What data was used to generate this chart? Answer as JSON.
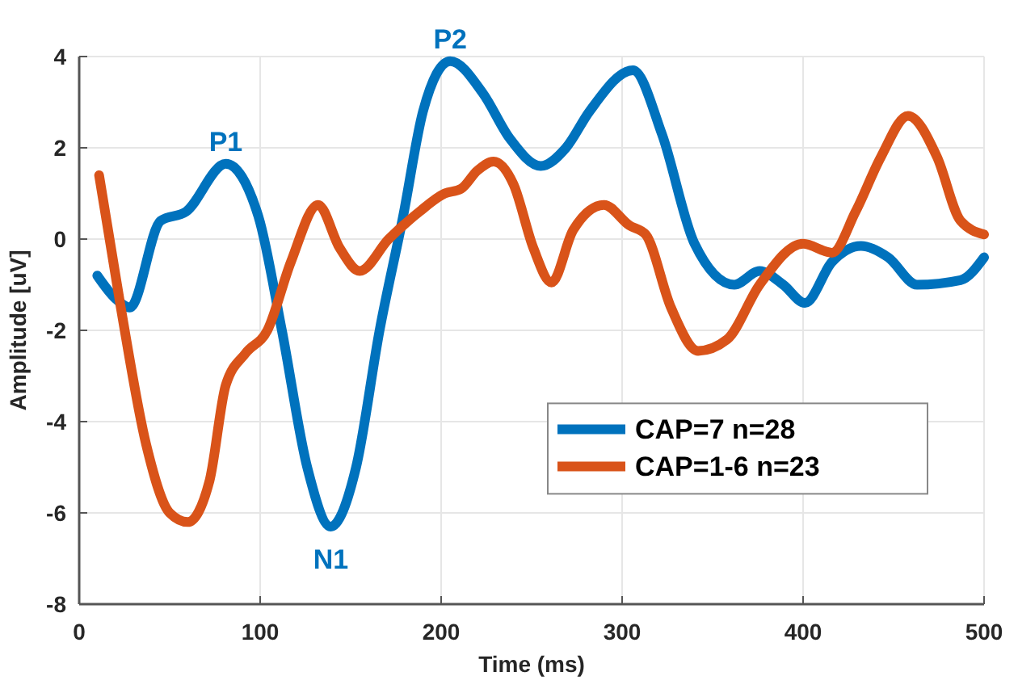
{
  "chart_data": {
    "type": "line",
    "xlabel": "Time (ms)",
    "ylabel": "Amplitude [uV]",
    "xlim": [
      0,
      500
    ],
    "xticks": [
      0,
      100,
      200,
      300,
      400,
      500
    ],
    "ylim": [
      -8,
      4
    ],
    "yticks": [
      -8,
      -6,
      -4,
      -2,
      0,
      2,
      4
    ],
    "grid": true,
    "legend": "bottom right",
    "line_style": "solid",
    "series": [
      {
        "name": "CAP=7 n=28",
        "color": "#0072bd",
        "x": [
          10,
          20,
          28,
          45,
          59,
          81,
          99,
          112,
          126,
          139,
          153,
          166,
          179,
          190,
          205,
          223,
          238,
          255,
          269,
          282,
          306,
          322,
          340,
          362,
          376,
          389,
          401,
          416,
          432,
          447,
          463,
          487,
          500
        ],
        "values": [
          -0.8,
          -1.3,
          -1.5,
          0.4,
          0.6,
          1.65,
          0.5,
          -2,
          -5,
          -6.3,
          -5,
          -2,
          0.5,
          2.8,
          3.9,
          3.2,
          2.2,
          1.6,
          2,
          2.8,
          3.7,
          2.3,
          -0.1,
          -1,
          -0.7,
          -1,
          -1.4,
          -0.5,
          -0.15,
          -0.4,
          -1,
          -0.9,
          -0.4
        ]
      },
      {
        "name": "CAP=1-6 n=23",
        "color": "#d95319",
        "x": [
          11,
          23,
          37,
          50,
          60,
          72,
          81,
          92,
          104,
          117,
          132,
          144,
          155,
          171,
          188,
          202,
          211,
          220,
          229,
          240,
          251,
          261,
          273,
          290,
          304,
          313,
          327,
          342,
          358,
          376,
          400,
          416,
          429,
          443,
          458,
          474,
          487,
          500
        ],
        "values": [
          1.4,
          -1.5,
          -4.5,
          -6,
          -6.2,
          -5.3,
          -3.2,
          -2.5,
          -2,
          -0.5,
          0.75,
          -0.2,
          -0.7,
          0,
          0.6,
          1,
          1.1,
          1.5,
          1.7,
          1.2,
          -0.2,
          -0.95,
          0.2,
          0.75,
          0.3,
          0.1,
          -1.5,
          -2.45,
          -2.2,
          -1,
          -0.1,
          -0.3,
          0.6,
          1.8,
          2.7,
          1.8,
          0.4,
          0.1
        ]
      }
    ],
    "annotations": [
      {
        "text": "P1",
        "x": 81,
        "y": 1.65
      },
      {
        "text": "N1",
        "x": 139,
        "y": -6.3
      },
      {
        "text": "P2",
        "x": 205,
        "y": 3.9
      }
    ]
  }
}
